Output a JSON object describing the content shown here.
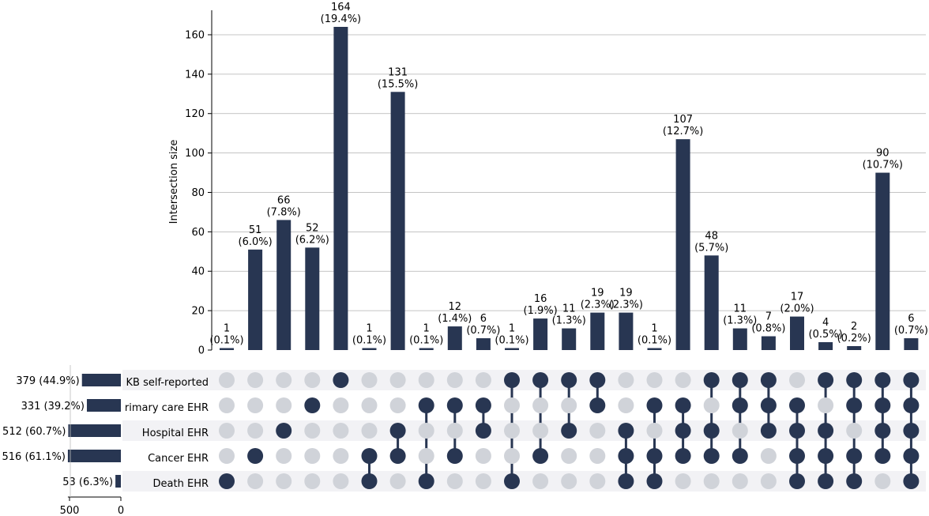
{
  "chart_data": {
    "type": "bar",
    "subtype": "upset",
    "ylabel": "Intersection size",
    "ylim": [
      0,
      172
    ],
    "yticks": [
      0,
      20,
      40,
      60,
      80,
      100,
      120,
      140,
      160
    ],
    "grid": true,
    "sets": [
      {
        "name": "UKB self-reported",
        "display": "KB self-reported",
        "size": 379,
        "size_label": "379 (44.9%)"
      },
      {
        "name": "Primary care EHR",
        "display": "rimary care EHR",
        "size": 331,
        "size_label": "331 (39.2%)"
      },
      {
        "name": "Hospital EHR",
        "display": "Hospital EHR",
        "size": 512,
        "size_label": "512 (60.7%)"
      },
      {
        "name": "Cancer EHR",
        "display": "Cancer EHR",
        "size": 516,
        "size_label": "516 (61.1%)"
      },
      {
        "name": "Death EHR",
        "display": "Death EHR",
        "size": 53,
        "size_label": "53 (6.3%)"
      }
    ],
    "set_size_axis": {
      "ticks": [
        500,
        0
      ],
      "max": 516
    },
    "intersections": [
      {
        "value": 1,
        "label": "(0.1%)",
        "members": [
          4
        ]
      },
      {
        "value": 51,
        "label": "(6.0%)",
        "members": [
          3
        ]
      },
      {
        "value": 66,
        "label": "(7.8%)",
        "members": [
          2
        ]
      },
      {
        "value": 52,
        "label": "(6.2%)",
        "members": [
          1
        ]
      },
      {
        "value": 164,
        "label": "(19.4%)",
        "members": [
          0
        ]
      },
      {
        "value": 1,
        "label": "(0.1%)",
        "members": [
          3,
          4
        ]
      },
      {
        "value": 131,
        "label": "(15.5%)",
        "members": [
          2,
          3
        ]
      },
      {
        "value": 1,
        "label": "(0.1%)",
        "members": [
          1,
          4
        ]
      },
      {
        "value": 12,
        "label": "(1.4%)",
        "members": [
          1,
          3
        ]
      },
      {
        "value": 6,
        "label": "(0.7%)",
        "members": [
          1,
          2
        ]
      },
      {
        "value": 1,
        "label": "(0.1%)",
        "members": [
          0,
          4
        ]
      },
      {
        "value": 16,
        "label": "(1.9%)",
        "members": [
          0,
          3
        ]
      },
      {
        "value": 11,
        "label": "(1.3%)",
        "members": [
          0,
          2
        ]
      },
      {
        "value": 19,
        "label": "(2.3%)",
        "members": [
          0,
          1
        ]
      },
      {
        "value": 19,
        "label": "(2.3%)",
        "members": [
          2,
          3,
          4
        ]
      },
      {
        "value": 1,
        "label": "(0.1%)",
        "members": [
          1,
          3,
          4
        ]
      },
      {
        "value": 107,
        "label": "(12.7%)",
        "members": [
          1,
          2,
          3
        ]
      },
      {
        "value": 48,
        "label": "(5.7%)",
        "members": [
          0,
          2,
          3
        ]
      },
      {
        "value": 11,
        "label": "(1.3%)",
        "members": [
          0,
          1,
          3
        ]
      },
      {
        "value": 7,
        "label": "(0.8%)",
        "members": [
          0,
          1,
          2
        ]
      },
      {
        "value": 17,
        "label": "(2.0%)",
        "members": [
          1,
          2,
          3,
          4
        ]
      },
      {
        "value": 4,
        "label": "(0.5%)",
        "members": [
          0,
          2,
          3,
          4
        ]
      },
      {
        "value": 2,
        "label": "(0.2%)",
        "members": [
          0,
          1,
          3,
          4
        ]
      },
      {
        "value": 90,
        "label": "(10.7%)",
        "members": [
          0,
          1,
          2,
          3
        ]
      },
      {
        "value": 6,
        "label": "(0.7%)",
        "members": [
          0,
          1,
          2,
          3,
          4
        ]
      }
    ],
    "colors": {
      "bar": "#283652",
      "dot_off": "#d0d3d9",
      "stripe": "#f2f2f5",
      "grid": "#b0b0b0",
      "axis": "#000000"
    }
  }
}
